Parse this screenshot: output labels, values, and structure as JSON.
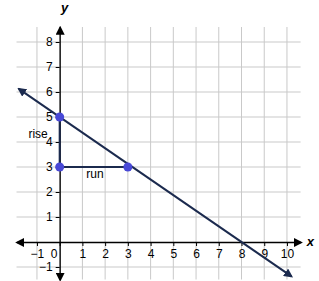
{
  "chart_data": {
    "type": "line",
    "xlabel": "x",
    "ylabel": "y",
    "xlim": [
      -1.9,
      10.6
    ],
    "ylim": [
      -1.5,
      8.6
    ],
    "xticks": [
      {
        "value": -1,
        "label": "−1"
      },
      0,
      1,
      2,
      3,
      4,
      5,
      6,
      7,
      8,
      9,
      10
    ],
    "yticks": [
      {
        "value": -1,
        "label": "−1"
      },
      1,
      2,
      3,
      4,
      5,
      6,
      7,
      8
    ],
    "grid": true,
    "series": [
      {
        "type": "line",
        "color": "#1b2a4e",
        "marker": "arrow",
        "x": [
          -1.8,
          10.2
        ],
        "values": [
          6.125,
          -1.375
        ]
      },
      {
        "type": "line",
        "color": "#1b2a4e",
        "x": [
          0,
          0
        ],
        "values": [
          3,
          5
        ]
      },
      {
        "type": "line",
        "color": "#1b2a4e",
        "x": [
          0,
          3
        ],
        "values": [
          3,
          3
        ]
      },
      {
        "type": "scatter",
        "color": "#4848d6",
        "x": [
          0,
          0,
          3
        ],
        "values": [
          5,
          3,
          3
        ]
      }
    ],
    "annotations": [
      {
        "text": "rise",
        "x": -0.95,
        "y": 4.15
      },
      {
        "text": "run",
        "x": 1.55,
        "y": 2.55
      }
    ]
  }
}
